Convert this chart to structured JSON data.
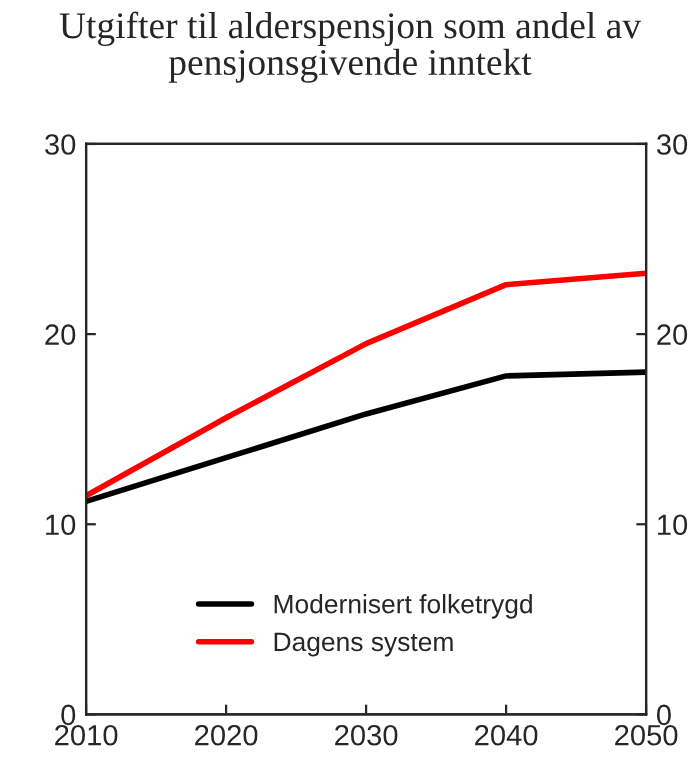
{
  "chart_data": {
    "type": "line",
    "title": "Utgifter til alderspensjon som andel av\npensjonsgivende inntekt",
    "x": [
      2010,
      2020,
      2030,
      2040,
      2050
    ],
    "series": [
      {
        "name": "Modernisert folketrygd",
        "color": "#000000",
        "values": [
          11.2,
          13.5,
          15.8,
          17.8,
          18.0
        ]
      },
      {
        "name": "Dagens system",
        "color": "#ff0000",
        "values": [
          11.5,
          15.6,
          19.5,
          22.6,
          23.2
        ]
      }
    ],
    "xlim": [
      2010,
      2050
    ],
    "xticks": [
      2010,
      2020,
      2030,
      2040,
      2050
    ],
    "ylim": [
      0,
      30
    ],
    "yticks": [
      0,
      10,
      20,
      30
    ],
    "y2lim": [
      0,
      30
    ],
    "y2ticks": [
      0,
      10,
      20,
      30
    ],
    "grid": false,
    "legend": "bottom",
    "marker": "none",
    "line_style": "solid"
  }
}
